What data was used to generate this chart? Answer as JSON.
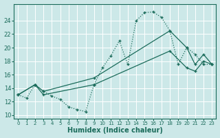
{
  "xlabel": "Humidex (Indice chaleur)",
  "bg_color": "#cce8e8",
  "line_color": "#1a6b5a",
  "grid_color": "#b0d4d4",
  "xlim": [
    -0.5,
    23.5
  ],
  "ylim": [
    9.5,
    26.5
  ],
  "xticks": [
    0,
    1,
    2,
    3,
    4,
    5,
    6,
    7,
    8,
    9,
    10,
    11,
    12,
    13,
    14,
    15,
    16,
    17,
    18,
    19,
    20,
    21,
    22,
    23
  ],
  "yticks": [
    10,
    12,
    14,
    16,
    18,
    20,
    22,
    24
  ],
  "curve_x": [
    0,
    1,
    2,
    3,
    4,
    5,
    6,
    7,
    8,
    9,
    10,
    11,
    12,
    13,
    14,
    15,
    16,
    17,
    18,
    19,
    20,
    21,
    22,
    23
  ],
  "curve_y": [
    13,
    12.5,
    14.5,
    13.5,
    12.8,
    12.3,
    11.2,
    10.8,
    10.5,
    14.5,
    17.0,
    18.8,
    21.0,
    17.5,
    24.0,
    25.2,
    25.3,
    24.5,
    22.5,
    17.5,
    20.0,
    19.0,
    17.5,
    17.5
  ],
  "line_upper_x": [
    0,
    2,
    3,
    9,
    18,
    20,
    21,
    22,
    23
  ],
  "line_upper_y": [
    13,
    14.5,
    13.5,
    15.5,
    22.5,
    20.0,
    17.5,
    19.0,
    17.5
  ],
  "line_lower_x": [
    0,
    2,
    3,
    9,
    18,
    20,
    21,
    22,
    23
  ],
  "line_lower_y": [
    13,
    14.5,
    13.0,
    14.5,
    19.5,
    17.0,
    16.5,
    18.0,
    17.5
  ]
}
